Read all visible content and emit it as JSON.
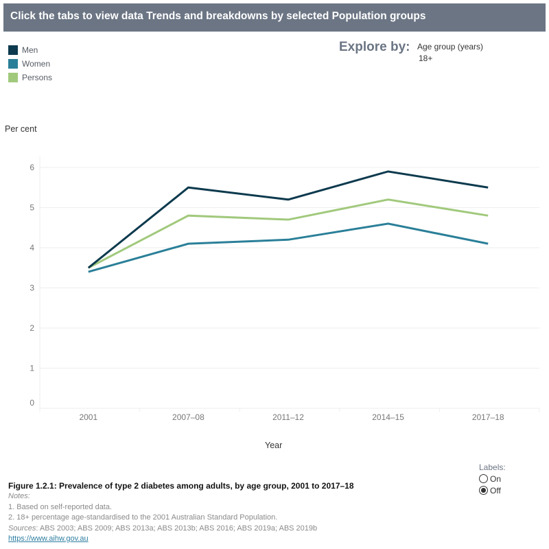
{
  "header": {
    "title": "Click the tabs to view data Trends and breakdowns by selected Population groups"
  },
  "legend": [
    {
      "label": "Men",
      "color": "#0d3a4e"
    },
    {
      "label": "Women",
      "color": "#2a7f98"
    },
    {
      "label": "Persons",
      "color": "#a1c97c"
    }
  ],
  "explore": {
    "label": "Explore by:",
    "field": "Age group (years)",
    "value": "18+"
  },
  "chart_data": {
    "type": "line",
    "title": "",
    "xlabel": "Year",
    "ylabel": "Per cent",
    "categories": [
      "2001",
      "2007–08",
      "2011–12",
      "2014–15",
      "2017–18"
    ],
    "ylim": [
      0,
      6
    ],
    "yticks": [
      0,
      1,
      2,
      3,
      4,
      5,
      6
    ],
    "grid": true,
    "legend_position": "top-left",
    "series": [
      {
        "name": "Men",
        "color": "#0d3a4e",
        "values": [
          3.5,
          5.5,
          5.2,
          5.9,
          5.5
        ]
      },
      {
        "name": "Women",
        "color": "#2a7f98",
        "values": [
          3.4,
          4.1,
          4.2,
          4.6,
          4.1
        ]
      },
      {
        "name": "Persons",
        "color": "#a1c97c",
        "values": [
          3.5,
          4.8,
          4.7,
          5.2,
          4.8
        ]
      }
    ]
  },
  "caption": "Figure 1.2.1: Prevalence of type 2 diabetes among adults, by age group, 2001 to 2017–18",
  "notes": {
    "heading": "Notes:",
    "items": [
      "1. Based on self-reported data.",
      "2. 18+ percentage age-standardised to the 2001 Australian Standard Population."
    ],
    "sources_label": "Sources",
    "sources": ": ABS 2003; ABS 2009; ABS 2013a; ABS 2013b; ABS 2016; ABS 2019a; ABS 2019b",
    "link": "https://www.aihw.gov.au"
  },
  "labels_control": {
    "title": "Labels:",
    "options": [
      "On",
      "Off"
    ],
    "selected": "Off"
  }
}
